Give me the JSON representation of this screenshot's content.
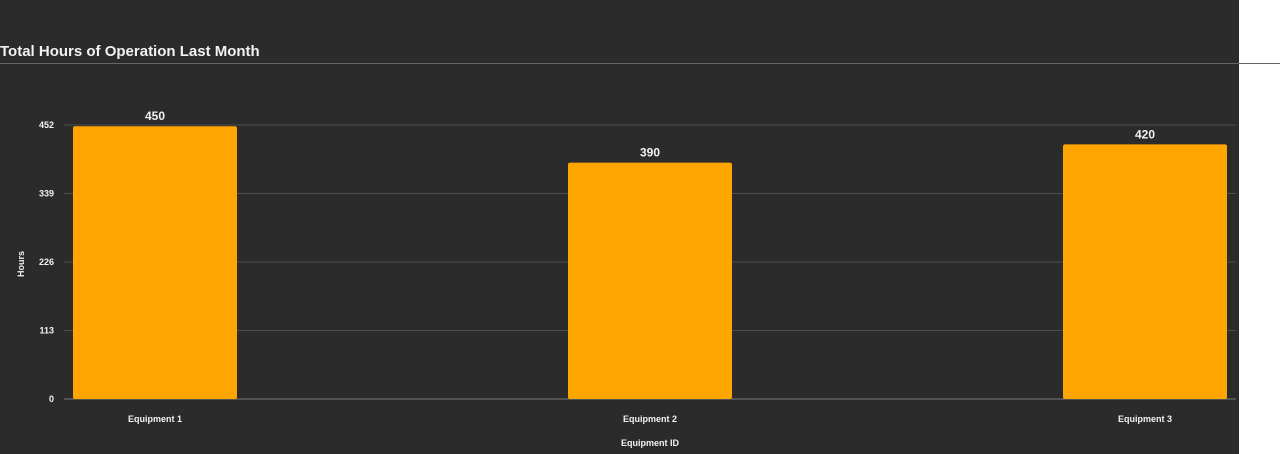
{
  "chart_data": {
    "type": "bar",
    "title": "Total Hours of Operation Last Month",
    "xlabel": "Equipment ID",
    "ylabel": "Hours",
    "categories": [
      "Equipment 1",
      "Equipment 2",
      "Equipment 3"
    ],
    "values": [
      450,
      390,
      420
    ],
    "yticks": [
      "0",
      "113",
      "226",
      "339",
      "452"
    ],
    "ylim": [
      0,
      452
    ],
    "grid": true,
    "legend": "none",
    "bar_color": "#FFA500",
    "background_color": "#2B2B2B"
  }
}
